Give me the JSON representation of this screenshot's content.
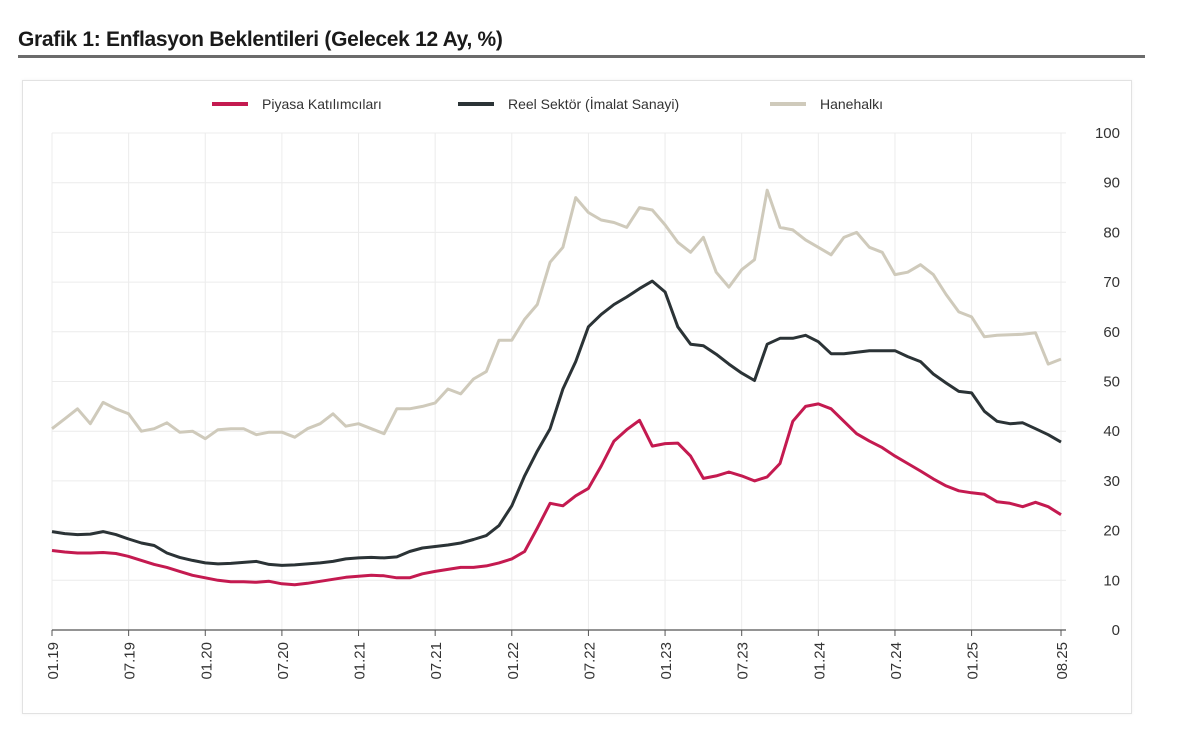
{
  "chart_data": {
    "type": "line",
    "title": "Grafik 1: Enflasyon Beklentileri (Gelecek 12 Ay, %)",
    "xlabel": "",
    "ylabel": "",
    "ylim": [
      0,
      100
    ],
    "yticks": [
      0,
      10,
      20,
      30,
      40,
      50,
      60,
      70,
      80,
      90,
      100
    ],
    "x_start": "01.19",
    "x_end": "08.25",
    "x_frequency": "monthly",
    "xticks": [
      "01.19",
      "07.19",
      "01.20",
      "07.20",
      "01.21",
      "07.21",
      "01.22",
      "07.22",
      "01.23",
      "07.23",
      "01.24",
      "07.24",
      "01.25",
      "08.25"
    ],
    "grid": true,
    "legend_position": "top",
    "y_axis_side": "right",
    "series": [
      {
        "name": "Piyasa Katılımcıları",
        "color": "#c41a50",
        "values": [
          16,
          15.7,
          15.5,
          15.5,
          15.6,
          15.4,
          14.8,
          14,
          13.2,
          12.6,
          11.8,
          11,
          10.5,
          10,
          9.7,
          9.7,
          9.6,
          9.8,
          9.3,
          9.1,
          9.4,
          9.8,
          10.2,
          10.6,
          10.8,
          11,
          10.9,
          10.5,
          10.5,
          11.3,
          11.8,
          12.2,
          12.6,
          12.6,
          12.9,
          13.5,
          14.3,
          15.8,
          20.5,
          25.5,
          25,
          27,
          28.5,
          33,
          38,
          40.3,
          42.2,
          37,
          37.5,
          37.6,
          35,
          30.5,
          31,
          31.8,
          31,
          30,
          30.8,
          33.5,
          42,
          45,
          45.5,
          44.5,
          42,
          39.5,
          38,
          36.7,
          35,
          33.5,
          32,
          30.4,
          29,
          28,
          27.6,
          27.3,
          25.8,
          25.5,
          24.8,
          25.7,
          24.8,
          23.2
        ]
      },
      {
        "name": "Reel Sektör (İmalat Sanayi)",
        "color": "#2b3336",
        "values": [
          19.8,
          19.4,
          19.2,
          19.3,
          19.8,
          19.2,
          18.3,
          17.5,
          17,
          15.5,
          14.6,
          14,
          13.5,
          13.3,
          13.4,
          13.6,
          13.8,
          13.2,
          13,
          13.1,
          13.3,
          13.5,
          13.8,
          14.3,
          14.5,
          14.6,
          14.5,
          14.7,
          15.8,
          16.5,
          16.8,
          17.1,
          17.5,
          18.2,
          19,
          21,
          25,
          31,
          36,
          40.5,
          48.5,
          54,
          61,
          63.5,
          65.5,
          67,
          68.7,
          70.2,
          68,
          61,
          57.5,
          57.2,
          55.5,
          53.5,
          51.7,
          50.2,
          57.5,
          58.7,
          58.7,
          59.3,
          58,
          55.6,
          55.6,
          55.9,
          56.2,
          56.2,
          56.2,
          55,
          54,
          51.5,
          49.7,
          48,
          47.7,
          44,
          42,
          41.5,
          41.7,
          40.5,
          39.3,
          37.8
        ]
      },
      {
        "name": "Hanehalkı",
        "color": "#cfcabb",
        "values": [
          40.5,
          42.5,
          44.5,
          41.5,
          45.8,
          44.5,
          43.5,
          40,
          40.5,
          41.7,
          39.8,
          40,
          38.5,
          40.3,
          40.5,
          40.5,
          39.3,
          39.8,
          39.8,
          38.8,
          40.5,
          41.5,
          43.5,
          41,
          41.5,
          40.5,
          39.5,
          44.5,
          44.5,
          45,
          45.7,
          48.5,
          47.5,
          50.5,
          52,
          58.3,
          58.3,
          62.5,
          65.5,
          74,
          77,
          87,
          84,
          82.5,
          82,
          81,
          85,
          84.5,
          81.5,
          78,
          76,
          79,
          72,
          69,
          72.5,
          74.5,
          88.5,
          81,
          80.5,
          78.5,
          77,
          75.5,
          79,
          80,
          77,
          76,
          71.5,
          72,
          73.5,
          71.5,
          67.5,
          64,
          63,
          59,
          59.3,
          59.4,
          59.5,
          59.8,
          53.5,
          54.5
        ]
      }
    ]
  }
}
